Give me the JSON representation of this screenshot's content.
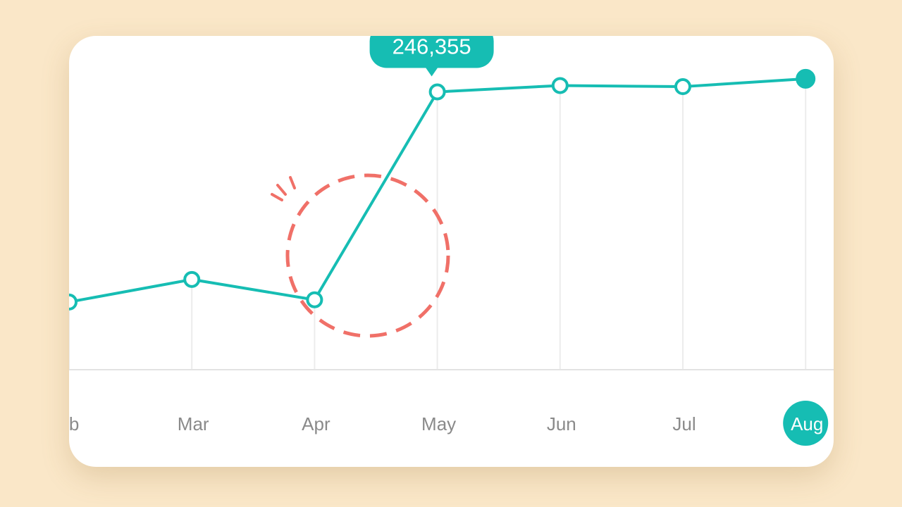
{
  "chart_data": {
    "type": "line",
    "categories": [
      "Feb",
      "Mar",
      "Apr",
      "May",
      "Jun",
      "Jul",
      "Aug"
    ],
    "values": [
      60000,
      80000,
      62000,
      246355,
      252000,
      251000,
      258000
    ],
    "ylim": [
      0,
      296000
    ],
    "tooltip": {
      "category": "May",
      "label": "246,355"
    },
    "selected_category": "Aug",
    "highlight_annotation": "dashed-circle-around-apr-may-rise",
    "grid": "vertical-lines-from-points",
    "colors": {
      "line": "#16BDB3",
      "annotation": "#F07068",
      "axis": "#E3E3E3",
      "gridline": "#ECECEC",
      "label": "#8A8A8A"
    }
  }
}
